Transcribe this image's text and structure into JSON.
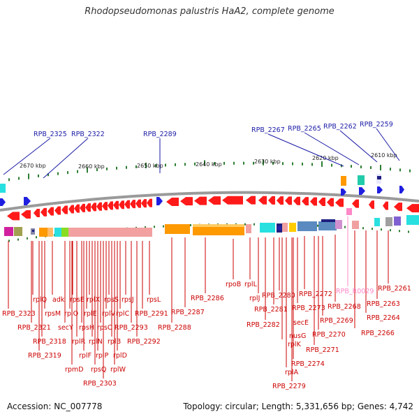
{
  "title": "Rhodopseudomonas palustris HaA2, complete genome",
  "accession": "Accession: NC_007778",
  "topology": "Topology: circular; Length: 5,331,656 bp; Genes: 4,742",
  "top_labels": [
    {
      "id": "b1",
      "text": "RPB_2325"
    },
    {
      "id": "b2",
      "text": "RPB_2322"
    },
    {
      "id": "b3",
      "text": "RPB_2289"
    },
    {
      "id": "b4",
      "text": "RPB_2267"
    },
    {
      "id": "b5",
      "text": "RPB_2265"
    },
    {
      "id": "b6",
      "text": "RPB_2262"
    },
    {
      "id": "b7",
      "text": "RPB_2259"
    }
  ],
  "ticks": [
    {
      "id": "k1",
      "text": "2670 kbp"
    },
    {
      "id": "k2",
      "text": "2660 kbp"
    },
    {
      "id": "k3",
      "text": "2650 kbp"
    },
    {
      "id": "k4",
      "text": "2640 kbp"
    },
    {
      "id": "k5",
      "text": "2630 kbp"
    },
    {
      "id": "k6",
      "text": "2620 kbp"
    },
    {
      "id": "k7",
      "text": "2610 kbp"
    }
  ],
  "bottom_labels": [
    {
      "id": "l1",
      "text": "RPB_2323"
    },
    {
      "id": "l2",
      "text": "rplQ"
    },
    {
      "id": "l3",
      "text": "RPB_2321"
    },
    {
      "id": "l4",
      "text": "rpsM"
    },
    {
      "id": "l5",
      "text": "adk"
    },
    {
      "id": "l6",
      "text": "RPB_2318"
    },
    {
      "id": "l7",
      "text": "secY"
    },
    {
      "id": "l8",
      "text": "RPB_2319"
    },
    {
      "id": "l9",
      "text": "rplO"
    },
    {
      "id": "l10",
      "text": "rpsE"
    },
    {
      "id": "l11",
      "text": "rpmD"
    },
    {
      "id": "l12",
      "text": "rplR"
    },
    {
      "id": "l13",
      "text": "rpsH"
    },
    {
      "id": "l14",
      "text": "rplF"
    },
    {
      "id": "l15",
      "text": "rplE"
    },
    {
      "id": "l16",
      "text": "rplX"
    },
    {
      "id": "l17",
      "text": "rplN"
    },
    {
      "id": "l18",
      "text": "rpsQ"
    },
    {
      "id": "l19",
      "text": "rplP"
    },
    {
      "id": "l20",
      "text": "RPB_2303"
    },
    {
      "id": "l21",
      "text": "rpsC"
    },
    {
      "id": "l22",
      "text": "rplV"
    },
    {
      "id": "l23",
      "text": "rpsS"
    },
    {
      "id": "l24",
      "text": "rplB"
    },
    {
      "id": "l25",
      "text": "rplW"
    },
    {
      "id": "l26",
      "text": "rplD"
    },
    {
      "id": "l27",
      "text": "rplC"
    },
    {
      "id": "l28",
      "text": "rpsJ"
    },
    {
      "id": "l29",
      "text": "RPB_2293"
    },
    {
      "id": "l30",
      "text": "RPB_2292"
    },
    {
      "id": "l31",
      "text": "RPB_2291"
    },
    {
      "id": "l32",
      "text": "rpsL"
    },
    {
      "id": "l33",
      "text": "RPB_2288"
    },
    {
      "id": "l34",
      "text": "RPB_2287"
    },
    {
      "id": "l35",
      "text": "RPB_2286"
    },
    {
      "id": "l36",
      "text": "rpoB"
    },
    {
      "id": "l37",
      "text": "rplL"
    },
    {
      "id": "l38",
      "text": "rplJ"
    },
    {
      "id": "l39",
      "text": "RPB_2282"
    },
    {
      "id": "l40",
      "text": "RPB_2281"
    },
    {
      "id": "l41",
      "text": "RPB_2280"
    },
    {
      "id": "l42",
      "text": "nusG"
    },
    {
      "id": "l43",
      "text": "secE"
    },
    {
      "id": "l44",
      "text": "rplK"
    },
    {
      "id": "l45",
      "text": "rplA"
    },
    {
      "id": "l46",
      "text": "RPB_2279"
    },
    {
      "id": "l47",
      "text": "RPB_2274"
    },
    {
      "id": "l48",
      "text": "RPB_2273"
    },
    {
      "id": "l49",
      "text": "RPB_2272"
    },
    {
      "id": "l50",
      "text": "RPB_2271"
    },
    {
      "id": "l51",
      "text": "RPB_2270"
    },
    {
      "id": "l52",
      "text": "RPB_2269"
    },
    {
      "id": "l53",
      "text": "RPB_2268"
    },
    {
      "id": "l54",
      "text": "RPB_R0029"
    },
    {
      "id": "l55",
      "text": "RPB_2266"
    },
    {
      "id": "l56",
      "text": "RPB_2264"
    },
    {
      "id": "l57",
      "text": "RPB_2263"
    },
    {
      "id": "l58",
      "text": "RPB_2261"
    }
  ]
}
